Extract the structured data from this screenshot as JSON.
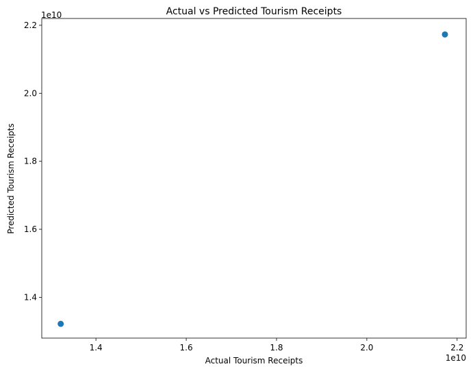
{
  "chart_data": {
    "type": "scatter",
    "title": "Actual vs Predicted Tourism Receipts",
    "xlabel": "Actual Tourism Receipts",
    "ylabel": "Predicted Tourism Receipts",
    "x_offset_label": "1e10",
    "y_offset_label": "1e10",
    "xlim": [
      1.28,
      2.22
    ],
    "ylim": [
      1.28,
      2.22
    ],
    "xticks": [
      {
        "value": 1.4,
        "label": "1.4"
      },
      {
        "value": 1.6,
        "label": "1.6"
      },
      {
        "value": 1.8,
        "label": "1.8"
      },
      {
        "value": 2.0,
        "label": "2.0"
      },
      {
        "value": 2.2,
        "label": "2.2"
      }
    ],
    "yticks": [
      {
        "value": 1.4,
        "label": "1.4"
      },
      {
        "value": 1.6,
        "label": "1.6"
      },
      {
        "value": 1.8,
        "label": "1.8"
      },
      {
        "value": 2.0,
        "label": "2.0"
      },
      {
        "value": 2.2,
        "label": "2.2"
      }
    ],
    "grid": false,
    "marker_color": "#1f77b4",
    "series": [
      {
        "points": [
          {
            "x": 1.322,
            "y": 1.322
          },
          {
            "x": 2.173,
            "y": 2.173
          }
        ]
      }
    ]
  }
}
